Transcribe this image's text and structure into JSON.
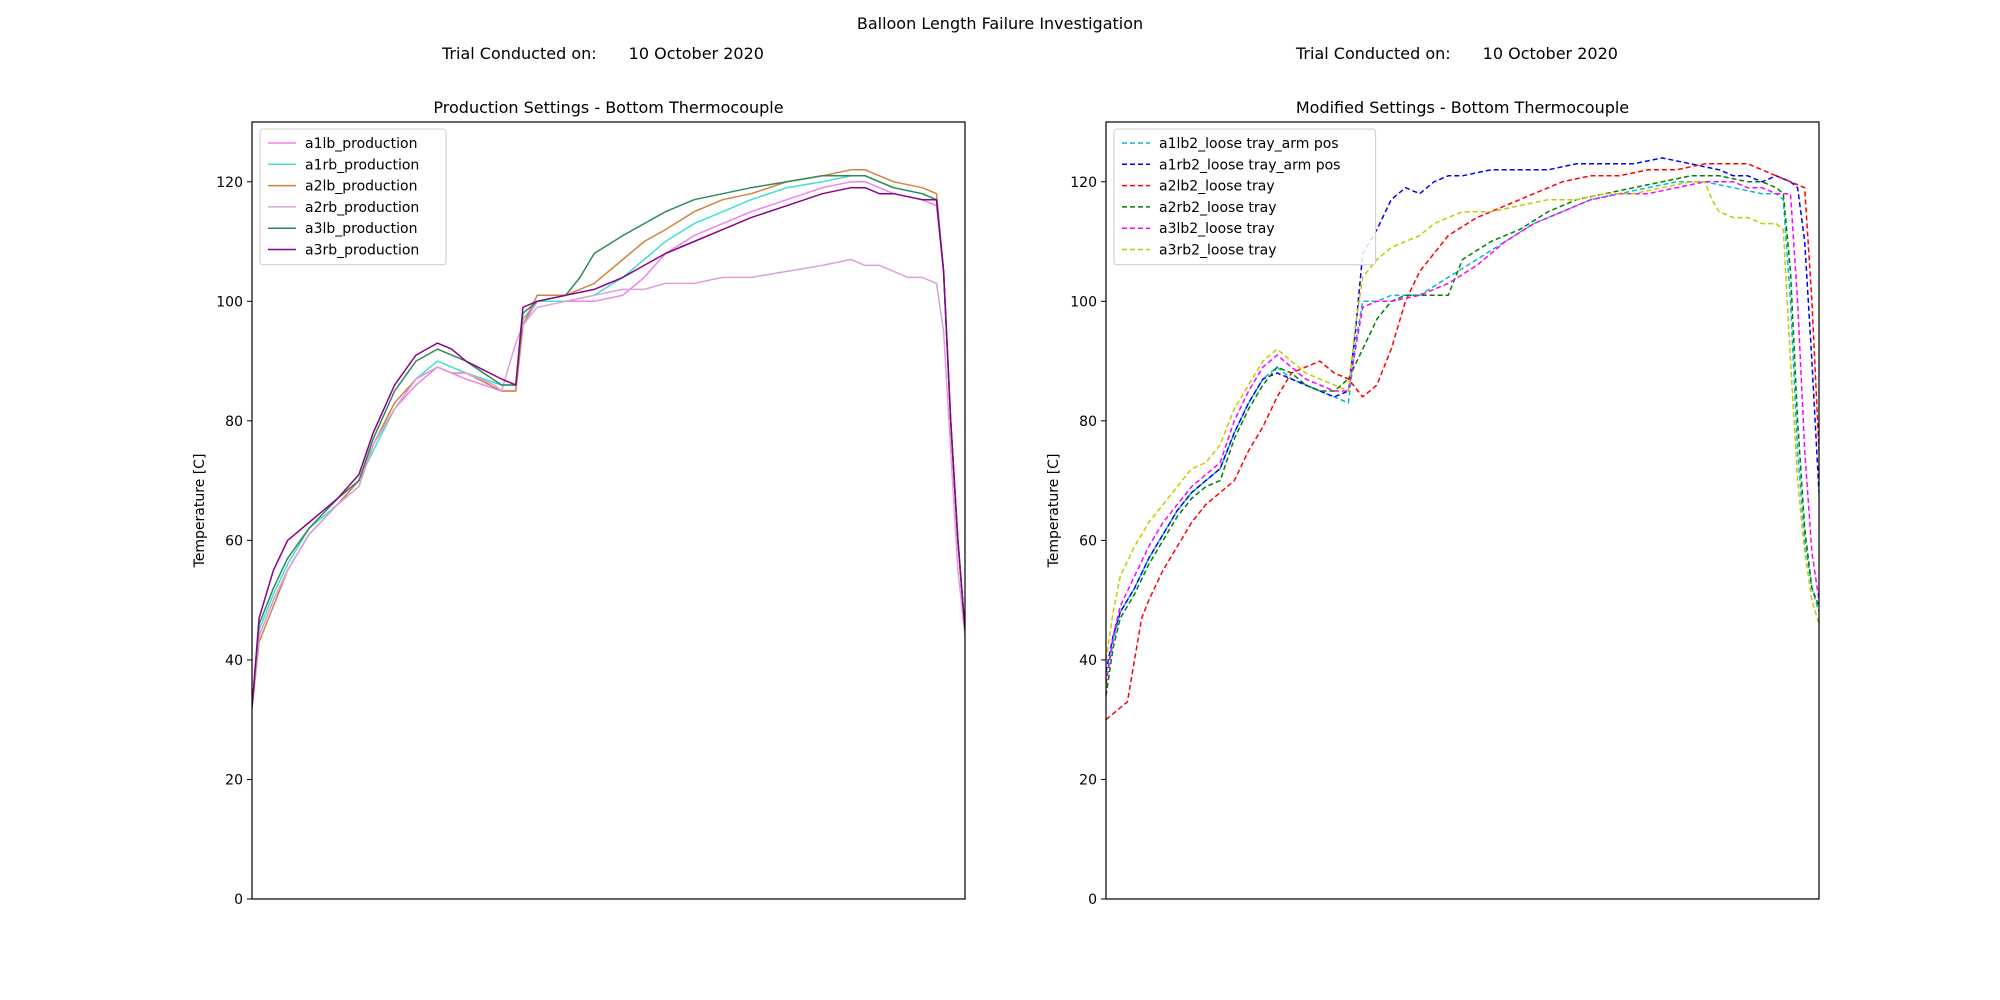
{
  "suptitle": "Balloon Length Failure Investigation",
  "trial_left": {
    "label": "Trial Conducted on:",
    "date": "10 October 2020"
  },
  "trial_right": {
    "label": "Trial Conducted on:",
    "date": "10 October 2020"
  },
  "chart_data": [
    {
      "type": "line",
      "title": "Production Settings - Bottom Thermocouple",
      "xlabel": "",
      "ylabel": "Temperature [C]",
      "x_ticks_visible": false,
      "xlim": [
        0,
        100
      ],
      "ylim": [
        0,
        130
      ],
      "yticks": [
        0,
        20,
        40,
        60,
        80,
        100,
        120
      ],
      "grid": false,
      "legend": "top-left",
      "series": [
        {
          "name": "a1lb_production",
          "color": "#ee82ee",
          "dash": false,
          "x": [
            0,
            1,
            3,
            5,
            8,
            12,
            15,
            17,
            20,
            23,
            26,
            28,
            30,
            35,
            37,
            38,
            40,
            44,
            48,
            52,
            55,
            58,
            62,
            66,
            70,
            75,
            80,
            84,
            86,
            88,
            90,
            94,
            96,
            97,
            98,
            99,
            100
          ],
          "y": [
            32,
            44,
            50,
            55,
            61,
            66,
            69,
            76,
            82,
            86,
            89,
            88,
            87,
            85,
            85,
            96,
            100,
            100,
            100,
            101,
            104,
            108,
            111,
            113,
            115,
            117,
            119,
            120,
            120,
            119,
            118,
            117,
            116,
            105,
            80,
            60,
            45
          ]
        },
        {
          "name": "a1rb_production",
          "color": "#40e0d0",
          "dash": false,
          "x": [
            0,
            1,
            3,
            5,
            8,
            12,
            15,
            17,
            20,
            23,
            26,
            28,
            30,
            35,
            37,
            38,
            40,
            44,
            48,
            52,
            55,
            58,
            62,
            66,
            70,
            75,
            80,
            84,
            86,
            88,
            90,
            94,
            96,
            97,
            98,
            99,
            100
          ],
          "y": [
            32,
            45,
            51,
            56,
            62,
            66,
            70,
            75,
            82,
            87,
            90,
            89,
            88,
            86,
            86,
            97,
            100,
            100,
            101,
            104,
            107,
            110,
            113,
            115,
            117,
            119,
            120,
            121,
            121,
            120,
            119,
            118,
            117,
            105,
            80,
            60,
            45
          ]
        },
        {
          "name": "a2lb_production",
          "color": "#cd853f",
          "dash": false,
          "x": [
            0,
            1,
            3,
            5,
            8,
            12,
            15,
            17,
            20,
            23,
            26,
            28,
            30,
            35,
            37,
            38,
            40,
            44,
            48,
            52,
            55,
            58,
            62,
            66,
            70,
            75,
            80,
            84,
            86,
            88,
            90,
            94,
            96,
            97,
            98,
            99,
            100
          ],
          "y": [
            32,
            43,
            49,
            55,
            61,
            66,
            70,
            76,
            83,
            87,
            89,
            88,
            88,
            85,
            85,
            96,
            101,
            101,
            103,
            107,
            110,
            112,
            115,
            117,
            118,
            120,
            121,
            122,
            122,
            121,
            120,
            119,
            118,
            105,
            80,
            60,
            45
          ]
        },
        {
          "name": "a2rb_production",
          "color": "#dda0dd",
          "dash": false,
          "x": [
            0,
            1,
            3,
            5,
            8,
            12,
            15,
            17,
            20,
            23,
            26,
            28,
            30,
            34,
            35,
            37,
            38,
            40,
            44,
            48,
            52,
            55,
            58,
            62,
            66,
            70,
            75,
            80,
            84,
            86,
            88,
            90,
            92,
            94,
            96,
            97,
            98,
            99,
            100
          ],
          "y": [
            32,
            44,
            50,
            55,
            61,
            66,
            69,
            76,
            82,
            87,
            89,
            88,
            88,
            86,
            85,
            93,
            96,
            99,
            100,
            101,
            102,
            102,
            103,
            103,
            104,
            104,
            105,
            106,
            107,
            106,
            106,
            105,
            104,
            104,
            103,
            95,
            75,
            55,
            44
          ]
        },
        {
          "name": "a3lb_production",
          "color": "#2e8b57",
          "dash": false,
          "x": [
            0,
            1,
            3,
            5,
            8,
            12,
            15,
            17,
            20,
            23,
            26,
            28,
            30,
            35,
            37,
            38,
            40,
            44,
            46,
            48,
            52,
            55,
            58,
            62,
            66,
            70,
            75,
            80,
            84,
            86,
            88,
            90,
            94,
            96,
            97,
            98,
            99,
            100
          ],
          "y": [
            32,
            46,
            52,
            57,
            62,
            67,
            70,
            77,
            85,
            90,
            92,
            91,
            90,
            86,
            86,
            98,
            100,
            101,
            104,
            108,
            111,
            113,
            115,
            117,
            118,
            119,
            120,
            121,
            121,
            121,
            120,
            119,
            118,
            117,
            105,
            80,
            60,
            45
          ]
        },
        {
          "name": "a3rb_production",
          "color": "#8b008b",
          "dash": false,
          "x": [
            0,
            1,
            3,
            5,
            8,
            12,
            15,
            17,
            20,
            23,
            26,
            28,
            30,
            35,
            37,
            38,
            40,
            44,
            48,
            52,
            55,
            58,
            62,
            66,
            70,
            75,
            80,
            84,
            86,
            88,
            90,
            94,
            96,
            97,
            98,
            99,
            100
          ],
          "y": [
            32,
            47,
            55,
            60,
            63,
            67,
            71,
            78,
            86,
            91,
            93,
            92,
            90,
            87,
            86,
            99,
            100,
            101,
            102,
            104,
            106,
            108,
            110,
            112,
            114,
            116,
            118,
            119,
            119,
            118,
            118,
            117,
            117,
            105,
            80,
            60,
            45
          ]
        }
      ]
    },
    {
      "type": "line",
      "title": "Modified Settings - Bottom Thermocouple",
      "xlabel": "",
      "ylabel": "Temperature [C]",
      "x_ticks_visible": false,
      "xlim": [
        0,
        100
      ],
      "ylim": [
        0,
        130
      ],
      "yticks": [
        0,
        20,
        40,
        60,
        80,
        100,
        120
      ],
      "grid": false,
      "legend": "top-left",
      "series": [
        {
          "name": "a1lb2_loose tray_arm pos",
          "color": "#00bcd4",
          "dash": true,
          "x": [
            0,
            1,
            2,
            4,
            6,
            8,
            10,
            12,
            14,
            16,
            18,
            20,
            22,
            24,
            26,
            28,
            30,
            32,
            34,
            35,
            36,
            38,
            40,
            44,
            48,
            52,
            56,
            60,
            64,
            68,
            72,
            76,
            80,
            84,
            88,
            92,
            94,
            95,
            96,
            97,
            98,
            99,
            100
          ],
          "y": [
            36,
            43,
            48,
            52,
            57,
            61,
            65,
            68,
            70,
            72,
            78,
            83,
            87,
            89,
            87,
            86,
            85,
            84,
            83,
            93,
            100,
            100,
            101,
            101,
            104,
            107,
            110,
            113,
            115,
            117,
            118,
            119,
            120,
            120,
            119,
            118,
            118,
            117,
            100,
            75,
            60,
            52,
            48
          ]
        },
        {
          "name": "a1rb2_loose tray_arm pos",
          "color": "#0000ff",
          "dash": true,
          "x": [
            0,
            1,
            2,
            4,
            6,
            8,
            10,
            12,
            14,
            16,
            18,
            20,
            22,
            24,
            26,
            28,
            30,
            32,
            34,
            35,
            36,
            38,
            40,
            42,
            44,
            46,
            48,
            50,
            54,
            58,
            62,
            66,
            70,
            74,
            78,
            82,
            86,
            88,
            90,
            92,
            94,
            96,
            97,
            98,
            99,
            100
          ],
          "y": [
            38,
            44,
            48,
            52,
            57,
            61,
            65,
            68,
            70,
            72,
            78,
            83,
            87,
            88,
            87,
            86,
            85,
            84,
            85,
            95,
            108,
            112,
            117,
            119,
            118,
            120,
            121,
            121,
            122,
            122,
            122,
            123,
            123,
            123,
            124,
            123,
            122,
            121,
            121,
            120,
            121,
            120,
            119,
            110,
            90,
            68
          ]
        },
        {
          "name": "a2lb2_loose tray",
          "color": "#ff0000",
          "dash": true,
          "x": [
            0,
            2,
            3,
            4,
            5,
            6,
            8,
            10,
            12,
            14,
            16,
            18,
            20,
            22,
            24,
            26,
            28,
            30,
            32,
            34,
            36,
            38,
            40,
            42,
            44,
            46,
            48,
            52,
            56,
            60,
            64,
            68,
            72,
            76,
            80,
            84,
            88,
            90,
            92,
            94,
            96,
            98,
            99,
            100
          ],
          "y": [
            30,
            32,
            33,
            40,
            47,
            50,
            55,
            59,
            63,
            66,
            68,
            70,
            75,
            79,
            84,
            88,
            89,
            90,
            88,
            87,
            84,
            86,
            92,
            100,
            105,
            108,
            111,
            114,
            116,
            118,
            120,
            121,
            121,
            122,
            122,
            123,
            123,
            123,
            122,
            121,
            120,
            119,
            100,
            75
          ]
        },
        {
          "name": "a2rb2_loose tray",
          "color": "#008000",
          "dash": true,
          "x": [
            0,
            1,
            2,
            4,
            6,
            8,
            10,
            12,
            14,
            16,
            18,
            20,
            22,
            24,
            26,
            28,
            30,
            32,
            34,
            36,
            38,
            40,
            42,
            44,
            46,
            48,
            50,
            54,
            58,
            62,
            66,
            70,
            74,
            78,
            82,
            86,
            90,
            92,
            94,
            95,
            96,
            97,
            98,
            99,
            100
          ],
          "y": [
            34,
            42,
            47,
            51,
            56,
            60,
            64,
            67,
            69,
            70,
            77,
            82,
            86,
            89,
            88,
            86,
            85,
            85,
            87,
            92,
            97,
            100,
            101,
            101,
            101,
            101,
            107,
            110,
            112,
            115,
            117,
            118,
            119,
            120,
            121,
            121,
            120,
            120,
            119,
            118,
            105,
            80,
            62,
            52,
            49
          ]
        },
        {
          "name": "a3lb2_loose tray",
          "color": "#ff00ff",
          "dash": true,
          "x": [
            0,
            1,
            2,
            4,
            6,
            8,
            10,
            12,
            14,
            16,
            18,
            20,
            22,
            24,
            26,
            28,
            30,
            32,
            34,
            35,
            36,
            38,
            40,
            44,
            48,
            52,
            56,
            60,
            64,
            68,
            72,
            76,
            80,
            84,
            88,
            90,
            92,
            94,
            96,
            97,
            98,
            99,
            100
          ],
          "y": [
            36,
            44,
            49,
            54,
            59,
            63,
            66,
            69,
            71,
            73,
            80,
            85,
            89,
            91,
            89,
            87,
            86,
            85,
            85,
            92,
            99,
            100,
            100,
            101,
            103,
            106,
            110,
            113,
            115,
            117,
            118,
            118,
            119,
            120,
            120,
            119,
            119,
            118,
            118,
            100,
            75,
            58,
            50
          ]
        },
        {
          "name": "a3rb2_loose tray",
          "color": "#c8c800",
          "dash": true,
          "x": [
            0,
            1,
            2,
            4,
            6,
            8,
            10,
            12,
            14,
            16,
            18,
            20,
            22,
            24,
            26,
            28,
            30,
            32,
            34,
            35,
            36,
            38,
            40,
            42,
            44,
            46,
            48,
            50,
            54,
            58,
            62,
            66,
            70,
            74,
            78,
            82,
            84,
            85,
            86,
            88,
            90,
            92,
            94,
            95,
            96,
            97,
            98,
            99,
            100
          ],
          "y": [
            40,
            48,
            54,
            59,
            63,
            66,
            69,
            72,
            73,
            76,
            82,
            86,
            90,
            92,
            90,
            88,
            87,
            86,
            85,
            96,
            104,
            107,
            109,
            110,
            111,
            113,
            114,
            115,
            115,
            116,
            117,
            117,
            118,
            118,
            119,
            120,
            120,
            117,
            115,
            114,
            114,
            113,
            113,
            112,
            90,
            70,
            58,
            50,
            46
          ]
        }
      ]
    }
  ]
}
